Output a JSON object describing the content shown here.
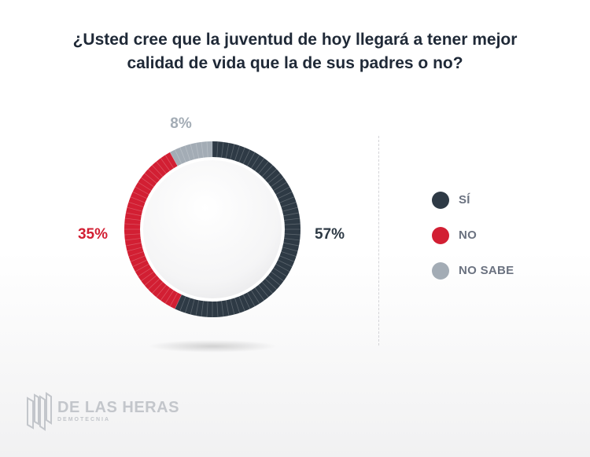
{
  "chart_data": {
    "type": "pie",
    "variant": "donut",
    "title": "¿Usted cree que la juventud de hoy llegará a tener mejor calidad de vida que la de sus padres o no?",
    "title_lines": [
      "¿Usted cree que la juventud de hoy llegará a tener mejor",
      "calidad de vida que la de sus padres o no?"
    ],
    "slices": [
      {
        "label": "SÍ",
        "value": 57,
        "display": "57%",
        "color": "#2e3a45",
        "label_color": "#2e3a45"
      },
      {
        "label": "NO",
        "value": 35,
        "display": "35%",
        "color": "#d21f33",
        "label_color": "#d21f33"
      },
      {
        "label": "NO SABE",
        "value": 8,
        "display": "8%",
        "color": "#a3acb5",
        "label_color": "#a3acb5"
      }
    ],
    "legend_placement": "right"
  },
  "logo": {
    "name": "DE LAS HERAS",
    "sub": "DEMOTECNIA",
    "color": "#c3c6cb"
  }
}
